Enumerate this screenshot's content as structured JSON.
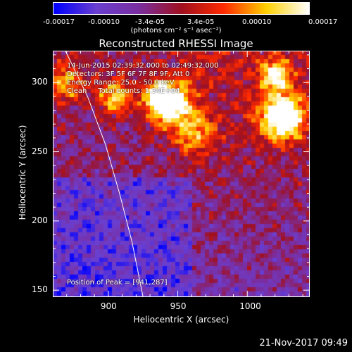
{
  "colorbar": {
    "tick_labels": [
      "-0.00017",
      "-0.00010",
      "-3.4e-05",
      "3.4e-05",
      "0.00010",
      "0.00017"
    ],
    "unit": "(photons cm⁻² s⁻¹ asec⁻²)",
    "colors": [
      "#0000ff",
      "#6a3fd0",
      "#7a2ea0",
      "#a01020",
      "#ff2a00",
      "#ffd000",
      "#ffffff"
    ]
  },
  "chart_data": {
    "type": "heatmap",
    "title": "Reconstructed RHESSI Image",
    "xlabel": "Heliocentric X (arcsec)",
    "ylabel": "Heliocentric Y (arcsec)",
    "xlim": [
      860,
      1045
    ],
    "ylim": [
      145,
      323
    ],
    "xticks": [
      900,
      950,
      1000
    ],
    "yticks": [
      150,
      200,
      250,
      300
    ],
    "info_lines": [
      "14-Jun-2015 02:39:32.000 to 02:49:32.000",
      "Detectors: 3F 5F 6F 7F 8F 9F, Att 0",
      "Energy Range: 25.0 - 50.0 keV",
      "Clean     Total counts: 1.34E+04"
    ],
    "peak_label": "Position of Peak = [941,287]",
    "peak": [
      941,
      287
    ],
    "vmin": -0.00017,
    "vmax": 0.00017,
    "limb_points": [
      [
        869,
        323
      ],
      [
        885,
        290
      ],
      [
        898,
        255
      ],
      [
        908,
        220
      ],
      [
        917,
        185
      ],
      [
        925,
        145
      ]
    ]
  },
  "timestamp": "21-Nov-2017 09:49"
}
